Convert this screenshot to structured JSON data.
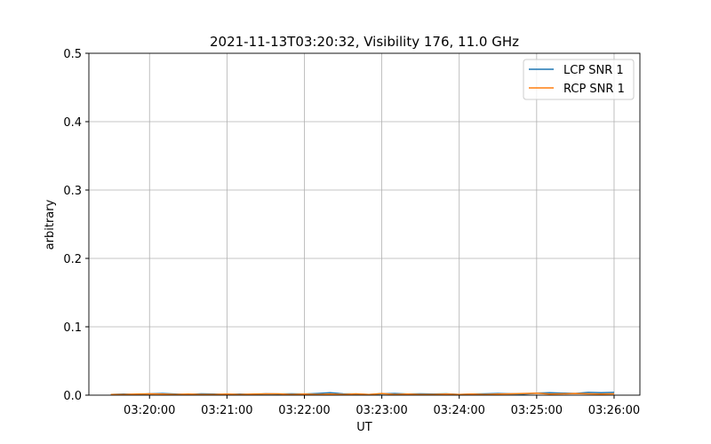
{
  "chart_data": {
    "type": "line",
    "title": "2021-11-13T03:20:32, Visibility 176, 11.0 GHz",
    "xlabel": "UT",
    "ylabel": "arbitrary",
    "ylim": [
      0,
      0.5
    ],
    "xlim": [
      "03:19:13",
      "03:26:20"
    ],
    "yticks": [
      "0.0",
      "0.1",
      "0.2",
      "0.3",
      "0.4",
      "0.5"
    ],
    "xticks": [
      "03:20:00",
      "03:21:00",
      "03:22:00",
      "03:23:00",
      "03:24:00",
      "03:25:00",
      "03:26:00"
    ],
    "grid": true,
    "legend": "top-right",
    "x": [
      "03:19:30",
      "03:19:40",
      "03:19:50",
      "03:20:00",
      "03:20:10",
      "03:20:20",
      "03:20:30",
      "03:20:40",
      "03:20:50",
      "03:21:00",
      "03:21:10",
      "03:21:20",
      "03:21:30",
      "03:21:40",
      "03:21:50",
      "03:22:00",
      "03:22:10",
      "03:22:20",
      "03:22:30",
      "03:22:40",
      "03:22:50",
      "03:23:00",
      "03:23:10",
      "03:23:20",
      "03:23:30",
      "03:23:40",
      "03:23:50",
      "03:24:00",
      "03:24:10",
      "03:24:20",
      "03:24:30",
      "03:24:40",
      "03:24:50",
      "03:25:00",
      "03:25:10",
      "03:25:20",
      "03:25:30",
      "03:25:40",
      "03:25:50",
      "03:26:00"
    ],
    "series": [
      {
        "name": "LCP SNR 1",
        "color": "#1f77b4",
        "values": [
          0.001,
          0.0015,
          0.001,
          0.002,
          0.0025,
          0.0015,
          0.001,
          0.002,
          0.0015,
          0.001,
          0.0015,
          0.001,
          0.002,
          0.0015,
          0.002,
          0.0015,
          0.0025,
          0.0035,
          0.002,
          0.0015,
          0.001,
          0.002,
          0.0025,
          0.0015,
          0.002,
          0.0015,
          0.002,
          0.001,
          0.0015,
          0.002,
          0.0025,
          0.002,
          0.0015,
          0.003,
          0.0035,
          0.003,
          0.0025,
          0.004,
          0.0035,
          0.004
        ]
      },
      {
        "name": "RCP SNR 1",
        "color": "#ff7f0e",
        "values": [
          0.001,
          0.001,
          0.0015,
          0.002,
          0.0015,
          0.001,
          0.0015,
          0.001,
          0.001,
          0.0015,
          0.001,
          0.0015,
          0.002,
          0.002,
          0.001,
          0.0015,
          0.001,
          0.0015,
          0.001,
          0.002,
          0.001,
          0.0025,
          0.001,
          0.0015,
          0.001,
          0.001,
          0.0015,
          0.001,
          0.0015,
          0.001,
          0.0015,
          0.002,
          0.0025,
          0.003,
          0.0015,
          0.002,
          0.0025,
          0.002,
          0.0015,
          0.002
        ]
      }
    ]
  }
}
